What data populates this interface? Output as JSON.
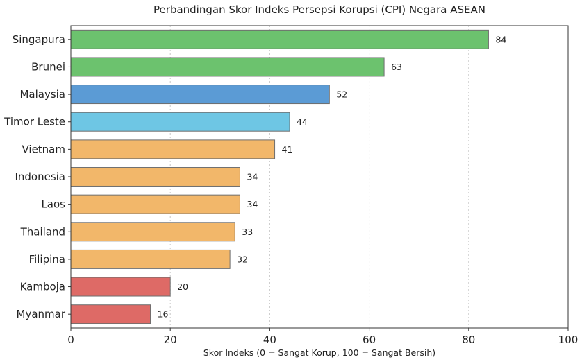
{
  "chart_data": {
    "type": "bar",
    "orientation": "horizontal",
    "title": "Perbandingan Skor Indeks Persepsi Korupsi (CPI) Negara ASEAN",
    "xlabel": "Skor Indeks (0 = Sangat Korup, 100 = Sangat Bersih)",
    "ylabel": "",
    "xlim": [
      0,
      100
    ],
    "xticks": [
      0,
      20,
      40,
      60,
      80,
      100
    ],
    "grid": "vertical dotted",
    "categories": [
      "Singapura",
      "Brunei",
      "Malaysia",
      "Timor Leste",
      "Vietnam",
      "Indonesia",
      "Laos",
      "Thailand",
      "Filipina",
      "Kamboja",
      "Myanmar"
    ],
    "values": [
      84,
      63,
      52,
      44,
      41,
      34,
      34,
      33,
      32,
      20,
      16
    ],
    "colors": [
      "#6cc26e",
      "#6cc26e",
      "#5b9bd5",
      "#6ec6e4",
      "#f2b76a",
      "#f2b76a",
      "#f2b76a",
      "#f2b76a",
      "#f2b76a",
      "#de6a66",
      "#de6a66"
    ]
  }
}
